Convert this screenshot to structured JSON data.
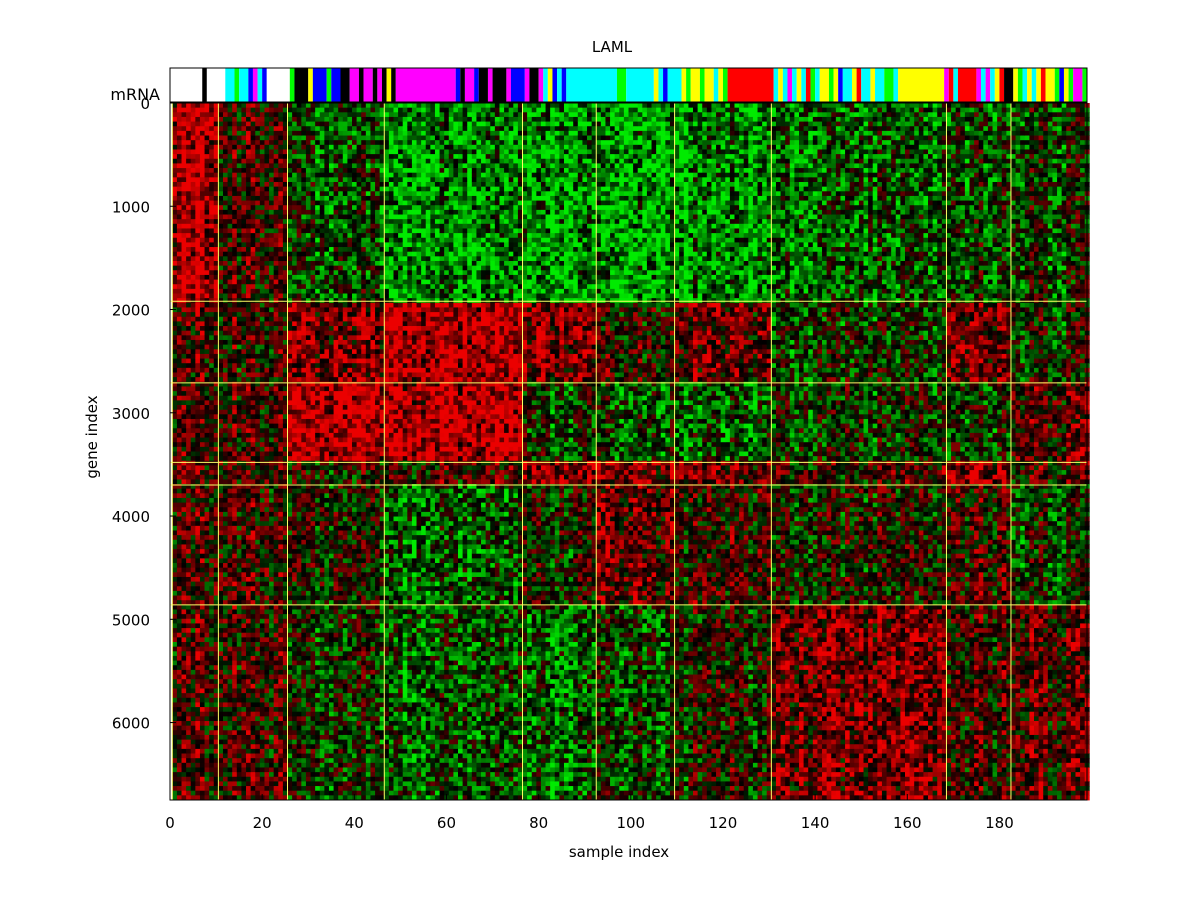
{
  "chart_data": {
    "type": "heatmap",
    "title": "LAML",
    "xlabel": "sample index",
    "ylabel": "gene index",
    "annotation_label": "mRNA",
    "xlim": [
      0,
      199
    ],
    "ylim": [
      0,
      6750
    ],
    "xticks": [
      0,
      20,
      40,
      60,
      80,
      100,
      120,
      140,
      160,
      180
    ],
    "yticks": [
      0,
      1000,
      2000,
      3000,
      4000,
      5000,
      6000
    ],
    "colormap": {
      "low": "#00ff00",
      "mid": "#000000",
      "high": "#ff0000"
    },
    "separator_color": "#ffff66",
    "sample_boundaries": [
      0.5,
      10.5,
      25.5,
      46.5,
      76.5,
      92.5,
      109.5,
      130.5,
      168.5,
      182.5
    ],
    "gene_boundaries": [
      1920,
      2710,
      3480,
      3700,
      4860
    ],
    "sample_annotation_colors": [
      "#ffffff",
      "#000000",
      "#00ffff",
      "#00ff00",
      "#0000ff",
      "#ff00ff",
      "#ffff00",
      "#ff0000"
    ],
    "sample_annotation_blocks": [
      {
        "start": 0,
        "end": 7,
        "color": "#ffffff"
      },
      {
        "start": 7,
        "end": 8,
        "color": "#000000"
      },
      {
        "start": 8,
        "end": 12,
        "color": "#ffffff"
      },
      {
        "start": 12,
        "end": 14,
        "color": "#00ffff"
      },
      {
        "start": 14,
        "end": 15,
        "color": "#00ff00"
      },
      {
        "start": 15,
        "end": 17,
        "color": "#00ffff"
      },
      {
        "start": 17,
        "end": 18,
        "color": "#0000ff"
      },
      {
        "start": 18,
        "end": 19,
        "color": "#ff00ff"
      },
      {
        "start": 19,
        "end": 20,
        "color": "#00ffff"
      },
      {
        "start": 20,
        "end": 21,
        "color": "#0000ff"
      },
      {
        "start": 21,
        "end": 26,
        "color": "#ffffff"
      },
      {
        "start": 26,
        "end": 27,
        "color": "#00ff00"
      },
      {
        "start": 27,
        "end": 30,
        "color": "#000000"
      },
      {
        "start": 30,
        "end": 31,
        "color": "#ffff00"
      },
      {
        "start": 31,
        "end": 34,
        "color": "#0000ff"
      },
      {
        "start": 34,
        "end": 35,
        "color": "#00ff00"
      },
      {
        "start": 35,
        "end": 37,
        "color": "#0000ff"
      },
      {
        "start": 37,
        "end": 39,
        "color": "#000000"
      },
      {
        "start": 39,
        "end": 41,
        "color": "#ff00ff"
      },
      {
        "start": 41,
        "end": 42,
        "color": "#000000"
      },
      {
        "start": 42,
        "end": 44,
        "color": "#ff00ff"
      },
      {
        "start": 44,
        "end": 45,
        "color": "#000000"
      },
      {
        "start": 45,
        "end": 46,
        "color": "#ff00ff"
      },
      {
        "start": 46,
        "end": 47,
        "color": "#000000"
      },
      {
        "start": 47,
        "end": 48,
        "color": "#ffff00"
      },
      {
        "start": 48,
        "end": 49,
        "color": "#000000"
      },
      {
        "start": 49,
        "end": 62,
        "color": "#ff00ff"
      },
      {
        "start": 62,
        "end": 63,
        "color": "#0000ff"
      },
      {
        "start": 63,
        "end": 64,
        "color": "#000000"
      },
      {
        "start": 64,
        "end": 66,
        "color": "#ff00ff"
      },
      {
        "start": 66,
        "end": 67,
        "color": "#0000ff"
      },
      {
        "start": 67,
        "end": 69,
        "color": "#000000"
      },
      {
        "start": 69,
        "end": 70,
        "color": "#ff00ff"
      },
      {
        "start": 70,
        "end": 73,
        "color": "#000000"
      },
      {
        "start": 73,
        "end": 74,
        "color": "#ff00ff"
      },
      {
        "start": 74,
        "end": 77,
        "color": "#0000ff"
      },
      {
        "start": 77,
        "end": 78,
        "color": "#ff00ff"
      },
      {
        "start": 78,
        "end": 80,
        "color": "#000000"
      },
      {
        "start": 80,
        "end": 81,
        "color": "#ff00ff"
      },
      {
        "start": 81,
        "end": 82,
        "color": "#00ffff"
      },
      {
        "start": 82,
        "end": 83,
        "color": "#ffff00"
      },
      {
        "start": 83,
        "end": 84,
        "color": "#0000ff"
      },
      {
        "start": 84,
        "end": 85,
        "color": "#00ffff"
      },
      {
        "start": 85,
        "end": 86,
        "color": "#0000ff"
      },
      {
        "start": 86,
        "end": 97,
        "color": "#00ffff"
      },
      {
        "start": 97,
        "end": 99,
        "color": "#00ff00"
      },
      {
        "start": 99,
        "end": 105,
        "color": "#00ffff"
      },
      {
        "start": 105,
        "end": 106,
        "color": "#ffff00"
      },
      {
        "start": 106,
        "end": 107,
        "color": "#00ffff"
      },
      {
        "start": 107,
        "end": 108,
        "color": "#0000ff"
      },
      {
        "start": 108,
        "end": 111,
        "color": "#00ffff"
      },
      {
        "start": 111,
        "end": 112,
        "color": "#ffff00"
      },
      {
        "start": 112,
        "end": 113,
        "color": "#00ff00"
      },
      {
        "start": 113,
        "end": 115,
        "color": "#ffff00"
      },
      {
        "start": 115,
        "end": 116,
        "color": "#00ff00"
      },
      {
        "start": 116,
        "end": 118,
        "color": "#ffff00"
      },
      {
        "start": 118,
        "end": 119,
        "color": "#00ffff"
      },
      {
        "start": 119,
        "end": 120,
        "color": "#ffff00"
      },
      {
        "start": 120,
        "end": 121,
        "color": "#00ff00"
      },
      {
        "start": 121,
        "end": 131,
        "color": "#ff0000"
      },
      {
        "start": 131,
        "end": 132,
        "color": "#00ffff"
      },
      {
        "start": 132,
        "end": 133,
        "color": "#ffff00"
      },
      {
        "start": 133,
        "end": 134,
        "color": "#00ffff"
      },
      {
        "start": 134,
        "end": 135,
        "color": "#ff00ff"
      },
      {
        "start": 135,
        "end": 136,
        "color": "#00ffff"
      },
      {
        "start": 136,
        "end": 137,
        "color": "#ffff00"
      },
      {
        "start": 137,
        "end": 138,
        "color": "#00ffff"
      },
      {
        "start": 138,
        "end": 139,
        "color": "#ff0000"
      },
      {
        "start": 139,
        "end": 140,
        "color": "#00ff00"
      },
      {
        "start": 140,
        "end": 141,
        "color": "#00ffff"
      },
      {
        "start": 141,
        "end": 143,
        "color": "#ffff00"
      },
      {
        "start": 143,
        "end": 144,
        "color": "#00ff00"
      },
      {
        "start": 144,
        "end": 145,
        "color": "#ffff00"
      },
      {
        "start": 145,
        "end": 146,
        "color": "#0000ff"
      },
      {
        "start": 146,
        "end": 148,
        "color": "#00ffff"
      },
      {
        "start": 148,
        "end": 149,
        "color": "#ffff00"
      },
      {
        "start": 149,
        "end": 150,
        "color": "#ff0000"
      },
      {
        "start": 150,
        "end": 152,
        "color": "#00ffff"
      },
      {
        "start": 152,
        "end": 153,
        "color": "#ffff00"
      },
      {
        "start": 153,
        "end": 155,
        "color": "#00ffff"
      },
      {
        "start": 155,
        "end": 157,
        "color": "#00ff00"
      },
      {
        "start": 157,
        "end": 158,
        "color": "#00ffff"
      },
      {
        "start": 158,
        "end": 168,
        "color": "#ffff00"
      },
      {
        "start": 168,
        "end": 169,
        "color": "#ff00ff"
      },
      {
        "start": 169,
        "end": 170,
        "color": "#ff0000"
      },
      {
        "start": 170,
        "end": 171,
        "color": "#00ffff"
      },
      {
        "start": 171,
        "end": 175,
        "color": "#ff0000"
      },
      {
        "start": 175,
        "end": 176,
        "color": "#ff00ff"
      },
      {
        "start": 176,
        "end": 177,
        "color": "#00ffff"
      },
      {
        "start": 177,
        "end": 178,
        "color": "#ff00ff"
      },
      {
        "start": 178,
        "end": 179,
        "color": "#00ffff"
      },
      {
        "start": 179,
        "end": 180,
        "color": "#ffff00"
      },
      {
        "start": 180,
        "end": 181,
        "color": "#ff0000"
      },
      {
        "start": 181,
        "end": 183,
        "color": "#000000"
      },
      {
        "start": 183,
        "end": 184,
        "color": "#ffff00"
      },
      {
        "start": 184,
        "end": 185,
        "color": "#00ff00"
      },
      {
        "start": 185,
        "end": 186,
        "color": "#00ffff"
      },
      {
        "start": 186,
        "end": 187,
        "color": "#ffff00"
      },
      {
        "start": 187,
        "end": 188,
        "color": "#00ffff"
      },
      {
        "start": 188,
        "end": 189,
        "color": "#ffff00"
      },
      {
        "start": 189,
        "end": 190,
        "color": "#ff0000"
      },
      {
        "start": 190,
        "end": 192,
        "color": "#ffff00"
      },
      {
        "start": 192,
        "end": 193,
        "color": "#00ff00"
      },
      {
        "start": 193,
        "end": 194,
        "color": "#0000ff"
      },
      {
        "start": 194,
        "end": 195,
        "color": "#ffff00"
      },
      {
        "start": 195,
        "end": 196,
        "color": "#00ff00"
      },
      {
        "start": 196,
        "end": 198,
        "color": "#ff00ff"
      },
      {
        "start": 198,
        "end": 199,
        "color": "#00ff00"
      }
    ],
    "sample_clusters": [
      {
        "start": 0,
        "end": 10,
        "gene_blocks": [
          1,
          0.3,
          0.3,
          0.3,
          0.3,
          0.3
        ]
      },
      {
        "start": 10,
        "end": 25,
        "gene_blocks": [
          0.3,
          0.2,
          0.3,
          0.3,
          0.3,
          0.3
        ]
      },
      {
        "start": 25,
        "end": 46,
        "gene_blocks": [
          -0.4,
          0.6,
          1,
          0,
          0,
          -0.2
        ]
      },
      {
        "start": 46,
        "end": 76,
        "gene_blocks": [
          -0.8,
          1,
          1,
          0.2,
          -0.5,
          -0.4
        ]
      },
      {
        "start": 76,
        "end": 92,
        "gene_blocks": [
          -0.8,
          0.7,
          -0.2,
          0.8,
          0,
          -0.5
        ]
      },
      {
        "start": 92,
        "end": 109,
        "gene_blocks": [
          -0.8,
          0.2,
          -0.3,
          0.8,
          0.6,
          -0.2
        ]
      },
      {
        "start": 109,
        "end": 130,
        "gene_blocks": [
          -0.8,
          0.5,
          -0.5,
          0.5,
          0.2,
          0
        ]
      },
      {
        "start": 130,
        "end": 168,
        "gene_blocks": [
          -0.5,
          -0.2,
          -0.2,
          0.2,
          0,
          0.6
        ]
      },
      {
        "start": 168,
        "end": 182,
        "gene_blocks": [
          -0.3,
          0.6,
          -0.2,
          0.8,
          0.2,
          0.2
        ]
      },
      {
        "start": 182,
        "end": 199,
        "gene_blocks": [
          -0.2,
          -0.1,
          0.4,
          0.2,
          -0.2,
          0.4
        ]
      }
    ]
  }
}
